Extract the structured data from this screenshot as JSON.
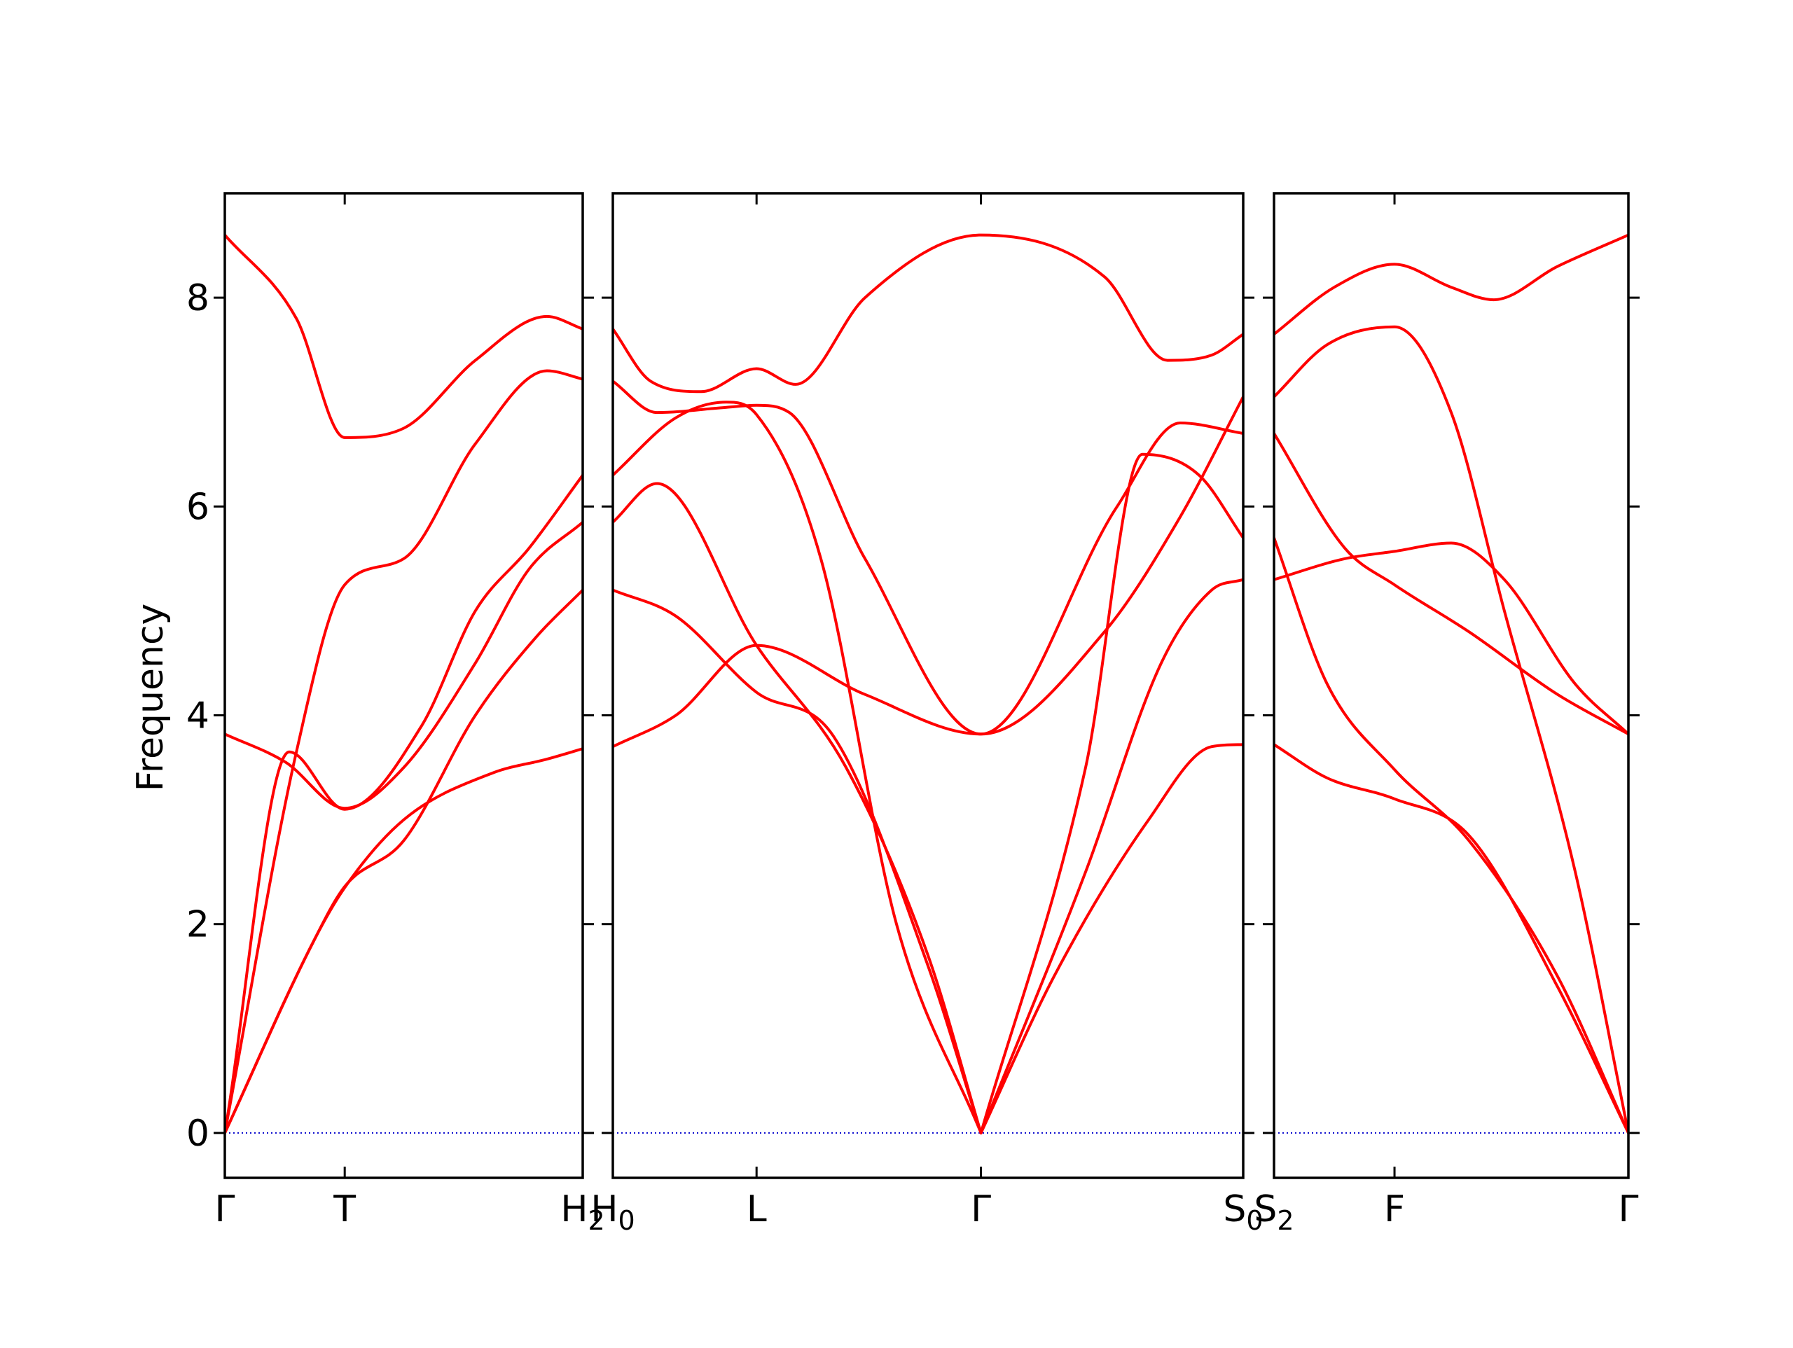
{
  "chart_data": {
    "type": "line",
    "ylabel": "Frequency",
    "ylim": [
      -0.43,
      9.0
    ],
    "yticks": [
      0,
      2,
      4,
      6,
      8
    ],
    "grid": false,
    "line_color": "#ff0000",
    "zero_line_color": "#0000cc",
    "panels": [
      {
        "id": "p1",
        "xlim": [
          0,
          1
        ],
        "xticks": [
          {
            "x": 0,
            "label": "Γ",
            "sub": ""
          },
          {
            "x": 0.335,
            "label": "T",
            "sub": ""
          },
          {
            "x": 1,
            "label": "H",
            "sub": "2"
          }
        ],
        "series": [
          {
            "x": [
              0,
              0.25,
              0.335,
              0.5,
              0.75,
              0.9,
              1
            ],
            "y": [
              0,
              1.85,
              2.35,
              3.0,
              3.45,
              3.58,
              3.68
            ]
          },
          {
            "x": [
              0,
              0.25,
              0.335,
              0.5,
              0.7,
              0.87,
              1
            ],
            "y": [
              0,
              1.85,
              2.36,
              2.8,
              4.0,
              4.75,
              5.2
            ]
          },
          {
            "x": [
              0,
              0.17,
              0.335,
              0.5,
              0.7,
              0.85,
              1
            ],
            "y": [
              3.82,
              3.55,
              3.11,
              3.5,
              4.5,
              5.4,
              5.85
            ]
          },
          {
            "x": [
              0,
              0.18,
              0.335,
              0.55,
              0.7,
              0.85,
              1
            ],
            "y": [
              0,
              3.65,
              3.1,
              3.9,
              5.0,
              5.6,
              6.3
            ]
          },
          {
            "x": [
              0,
              0.2,
              0.335,
              0.5,
              0.7,
              0.9,
              1
            ],
            "y": [
              0,
              3.65,
              5.25,
              5.5,
              6.6,
              7.3,
              7.22
            ]
          },
          {
            "x": [
              0,
              0.2,
              0.335,
              0.5,
              0.7,
              0.9,
              1
            ],
            "y": [
              8.6,
              7.8,
              6.66,
              6.75,
              7.4,
              7.82,
              7.7
            ]
          }
        ]
      },
      {
        "id": "p2",
        "xlim": [
          0,
          1
        ],
        "xticks": [
          {
            "x": 0,
            "label": "H",
            "sub": "0"
          },
          {
            "x": 0.228,
            "label": "L",
            "sub": ""
          },
          {
            "x": 0.584,
            "label": "Γ",
            "sub": ""
          },
          {
            "x": 1,
            "label": "S",
            "sub": "0"
          }
        ],
        "series": [
          {
            "x": [
              0,
              0.1,
              0.228,
              0.35,
              0.5,
              0.584
            ],
            "y": [
              5.2,
              4.95,
              4.22,
              3.8,
              1.6,
              0
            ]
          },
          {
            "x": [
              0,
              0.07,
              0.228,
              0.37,
              0.5,
              0.584
            ],
            "y": [
              5.85,
              6.22,
              4.67,
              3.5,
              1.7,
              0
            ]
          },
          {
            "x": [
              0,
              0.1,
              0.18,
              0.228,
              0.33,
              0.45,
              0.584
            ],
            "y": [
              6.3,
              6.85,
              7.0,
              6.88,
              5.5,
              2.0,
              0
            ]
          },
          {
            "x": [
              0,
              0.1,
              0.228,
              0.4,
              0.584,
              0.78,
              0.9,
              1
            ],
            "y": [
              3.7,
              4.0,
              4.67,
              4.2,
              3.82,
              4.8,
              5.9,
              7.05
            ]
          },
          {
            "x": [
              0,
              0.07,
              0.18,
              0.228,
              0.28,
              0.4,
              0.584,
              0.8,
              0.9,
              1
            ],
            "y": [
              7.2,
              6.9,
              6.95,
              6.97,
              6.9,
              5.5,
              3.82,
              6.0,
              6.8,
              6.7
            ]
          },
          {
            "x": [
              0,
              0.06,
              0.14,
              0.228,
              0.29,
              0.4,
              0.584,
              0.78,
              0.88,
              0.95,
              1
            ],
            "y": [
              7.7,
              7.2,
              7.1,
              7.32,
              7.17,
              8.0,
              8.6,
              8.2,
              7.4,
              7.45,
              7.65
            ]
          },
          {
            "x": [
              0.584,
              0.75,
              0.84,
              0.93,
              1
            ],
            "y": [
              0,
              3.5,
              6.5,
              6.3,
              5.7
            ]
          },
          {
            "x": [
              0.584,
              0.75,
              0.87,
              0.95,
              1
            ],
            "y": [
              0,
              2.5,
              4.5,
              5.2,
              5.3
            ]
          },
          {
            "x": [
              0.584,
              0.7,
              0.85,
              0.95,
              1
            ],
            "y": [
              0,
              1.5,
              3.0,
              3.7,
              3.72
            ]
          }
        ]
      },
      {
        "id": "p3",
        "xlim": [
          0,
          1
        ],
        "xticks": [
          {
            "x": 0,
            "label": "S",
            "sub": "2"
          },
          {
            "x": 0.34,
            "label": "F",
            "sub": ""
          },
          {
            "x": 1,
            "label": "Γ",
            "sub": ""
          }
        ],
        "series": [
          {
            "x": [
              0,
              0.15,
              0.34,
              0.55,
              0.8,
              1
            ],
            "y": [
              3.72,
              3.4,
              3.2,
              2.85,
              1.4,
              0
            ]
          },
          {
            "x": [
              0,
              0.15,
              0.34,
              0.55,
              0.8,
              1
            ],
            "y": [
              5.7,
              4.3,
              3.48,
              2.8,
              1.5,
              0
            ]
          },
          {
            "x": [
              0,
              0.2,
              0.34,
              0.55,
              0.8,
              1
            ],
            "y": [
              6.7,
              5.6,
              5.25,
              4.8,
              4.2,
              3.82
            ]
          },
          {
            "x": [
              0,
              0.2,
              0.34,
              0.5,
              0.65,
              0.85,
              1
            ],
            "y": [
              5.3,
              5.5,
              5.57,
              5.65,
              5.3,
              4.3,
              3.82
            ]
          },
          {
            "x": [
              0,
              0.15,
              0.34,
              0.5,
              0.65,
              0.85,
              1
            ],
            "y": [
              7.05,
              7.55,
              7.72,
              6.9,
              5.0,
              2.5,
              0
            ]
          },
          {
            "x": [
              0,
              0.17,
              0.34,
              0.5,
              0.62,
              0.8,
              1
            ],
            "y": [
              7.65,
              8.1,
              8.32,
              8.1,
              7.98,
              8.3,
              8.6
            ]
          }
        ]
      }
    ]
  }
}
